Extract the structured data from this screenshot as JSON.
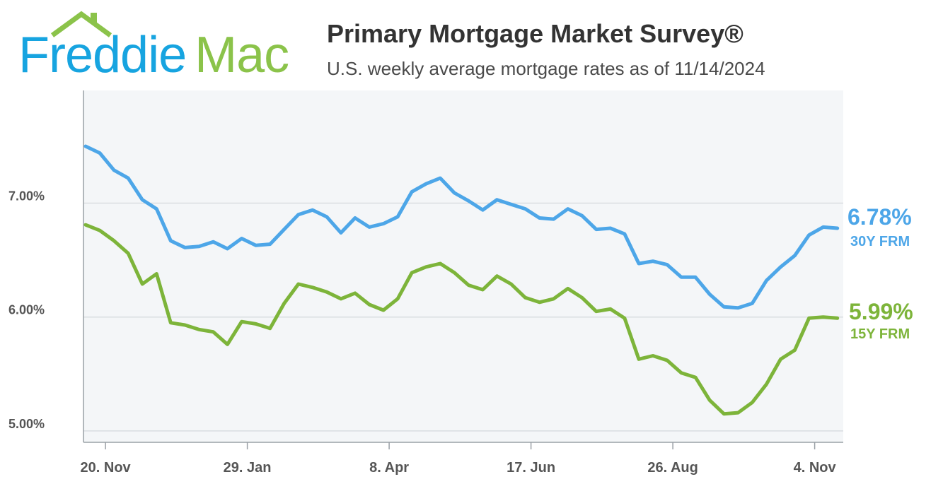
{
  "logo": {
    "word1": "Freddie",
    "word2": "Mac"
  },
  "header": {
    "title": "Primary Mortgage Market Survey®",
    "subtitle": "U.S. weekly average mortgage rates as of 11/14/2024"
  },
  "colors": {
    "series_30": "#4DA6E8",
    "series_15": "#7DB43A",
    "plot_bg": "#F4F6F8",
    "grid": "#D9DDE1",
    "axis": "#9AA0A6"
  },
  "chart_data": {
    "type": "line",
    "title": "Primary Mortgage Market Survey®",
    "subtitle": "U.S. weekly average mortgage rates as of 11/14/2024",
    "xlabel": "",
    "ylabel": "",
    "ylim": [
      4.9,
      7.99
    ],
    "yticks": [
      5,
      6,
      7
    ],
    "ytick_labels": [
      "5.00%",
      "6.00%",
      "7.00%"
    ],
    "xtick_labels": [
      "20. Nov",
      "29. Jan",
      "8. Apr",
      "17. Jun",
      "26. Aug",
      "4. Nov"
    ],
    "xtick_positions": [
      2,
      12,
      22,
      32,
      42,
      52
    ],
    "grid": true,
    "series": [
      {
        "name": "30Y FRM",
        "last_value_label": "6.78%",
        "values": [
          7.5,
          7.44,
          7.29,
          7.22,
          7.03,
          6.95,
          6.67,
          6.61,
          6.62,
          6.66,
          6.6,
          6.69,
          6.63,
          6.64,
          6.77,
          6.9,
          6.94,
          6.88,
          6.74,
          6.87,
          6.79,
          6.82,
          6.88,
          7.1,
          7.17,
          7.22,
          7.09,
          7.02,
          6.94,
          7.03,
          6.99,
          6.95,
          6.87,
          6.86,
          6.95,
          6.89,
          6.77,
          6.78,
          6.73,
          6.47,
          6.49,
          6.46,
          6.35,
          6.35,
          6.2,
          6.09,
          6.08,
          6.12,
          6.32,
          6.44,
          6.54,
          6.72,
          6.79,
          6.78
        ]
      },
      {
        "name": "15Y FRM",
        "last_value_label": "5.99%",
        "values": [
          6.81,
          6.76,
          6.67,
          6.56,
          6.29,
          6.38,
          5.95,
          5.93,
          5.89,
          5.87,
          5.76,
          5.96,
          5.94,
          5.9,
          6.12,
          6.29,
          6.26,
          6.22,
          6.16,
          6.21,
          6.11,
          6.06,
          6.16,
          6.39,
          6.44,
          6.47,
          6.39,
          6.28,
          6.24,
          6.36,
          6.29,
          6.17,
          6.13,
          6.16,
          6.25,
          6.17,
          6.05,
          6.07,
          5.99,
          5.63,
          5.66,
          5.62,
          5.51,
          5.47,
          5.27,
          5.15,
          5.16,
          5.25,
          5.41,
          5.63,
          5.71,
          5.99,
          6.0,
          5.99
        ]
      }
    ]
  }
}
